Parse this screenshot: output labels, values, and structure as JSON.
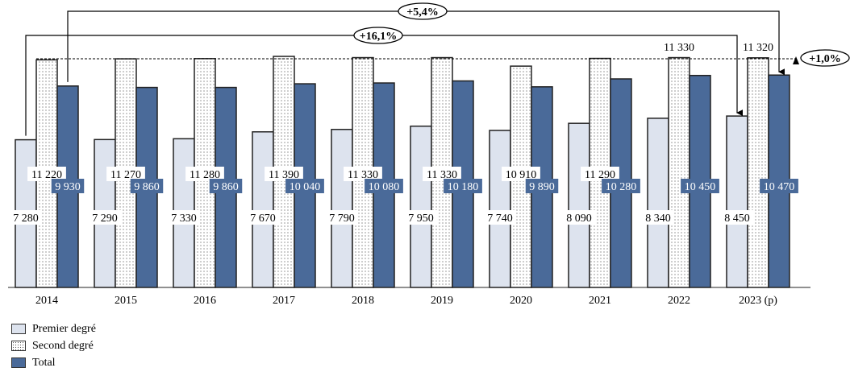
{
  "chart_data": {
    "type": "bar",
    "categories": [
      "2014",
      "2015",
      "2016",
      "2017",
      "2018",
      "2019",
      "2020",
      "2021",
      "2022",
      "2023 (p)"
    ],
    "series": [
      {
        "name": "Premier degré",
        "color": "#dde3ee",
        "values": [
          7280,
          7290,
          7330,
          7670,
          7790,
          7950,
          7740,
          8090,
          8340,
          8450
        ],
        "labels": [
          "7 280",
          "7 290",
          "7 330",
          "7 670",
          "7 790",
          "7 950",
          "7 740",
          "8 090",
          "8 340",
          "8 450"
        ]
      },
      {
        "name": "Second degré",
        "color": "#ffffff",
        "pattern": "dotted",
        "values": [
          11220,
          11270,
          11280,
          11390,
          11330,
          11330,
          10910,
          11290,
          11330,
          11320
        ],
        "labels": [
          "11 220",
          "11 270",
          "11 280",
          "11 390",
          "11 330",
          "11 330",
          "10 910",
          "11 290",
          "11 330",
          "11 320"
        ]
      },
      {
        "name": "Total",
        "color": "#4a6a99",
        "values": [
          9930,
          9860,
          9860,
          10040,
          10080,
          10180,
          9890,
          10280,
          10450,
          10470
        ],
        "labels": [
          "9 930",
          "9 860",
          "9 860",
          "10 040",
          "10 080",
          "10 180",
          "9 890",
          "10 280",
          "10 450",
          "10 470"
        ]
      }
    ],
    "annotations": [
      {
        "text": "+5,4%",
        "from": "2014 Total",
        "to": "2023 Total"
      },
      {
        "text": "+16,1%",
        "from": "2014 Premier degré",
        "to": "2023 Premier degré"
      },
      {
        "text": "+1,0%",
        "from": "2014 Second degré",
        "to": "2023 Second degré"
      }
    ],
    "ylim": [
      0,
      14170
    ],
    "grid": false,
    "legend": "bottom-left"
  }
}
